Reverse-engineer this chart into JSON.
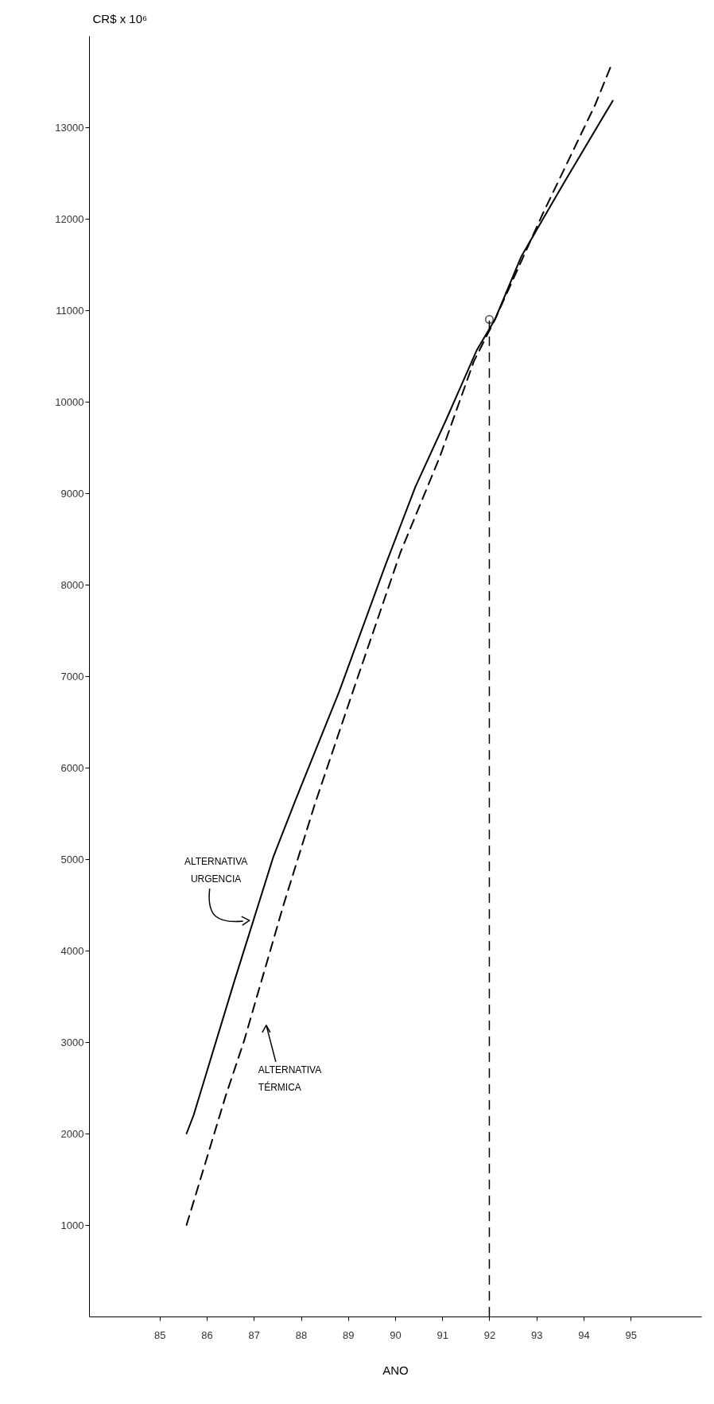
{
  "chart_data": {
    "type": "line",
    "xlabel": "ANO",
    "ylabel": "CR$ x 10⁶",
    "xlim": [
      83.5,
      96.5
    ],
    "ylim": [
      0,
      14000
    ],
    "xticks": [
      85,
      86,
      87,
      88,
      89,
      90,
      91,
      92,
      93,
      94,
      95
    ],
    "yticks": [
      1000,
      2000,
      3000,
      4000,
      5000,
      6000,
      7000,
      8000,
      9000,
      10000,
      11000,
      12000,
      13000
    ],
    "grid": false,
    "series": [
      {
        "name": "ALTERNATIVA URGENCIA",
        "color": "#000000",
        "line_style": "solid",
        "x": [
          85.57,
          85.72,
          86.57,
          87.41,
          87.88,
          88.81,
          89.79,
          90.43,
          91.08,
          91.73,
          92.12,
          92.68,
          93.58,
          94.62
        ],
        "values": [
          2000,
          2200,
          3640,
          5020,
          5640,
          6830,
          8210,
          9070,
          9800,
          10560,
          10900,
          11590,
          12390,
          13290
        ]
      },
      {
        "name": "ALTERNATIVA TÉRMICA",
        "color": "#000000",
        "line_style": "dashed",
        "x": [
          85.57,
          86.4,
          86.79,
          87.63,
          88.3,
          89.14,
          90.11,
          90.95,
          91.67,
          92.12,
          93.13,
          94.25,
          94.59
        ],
        "values": [
          1000,
          2410,
          3010,
          4500,
          5610,
          6890,
          8350,
          9400,
          10440,
          10900,
          12050,
          13250,
          13680
        ]
      },
      {
        "type": "scatter",
        "color": "#000000",
        "marker": "circle",
        "x": [
          92
        ],
        "values": [
          10900
        ]
      }
    ],
    "ref_lines": [
      {
        "axis": "x",
        "value": 92,
        "color": "#000000",
        "line_style": "dashed"
      }
    ]
  }
}
